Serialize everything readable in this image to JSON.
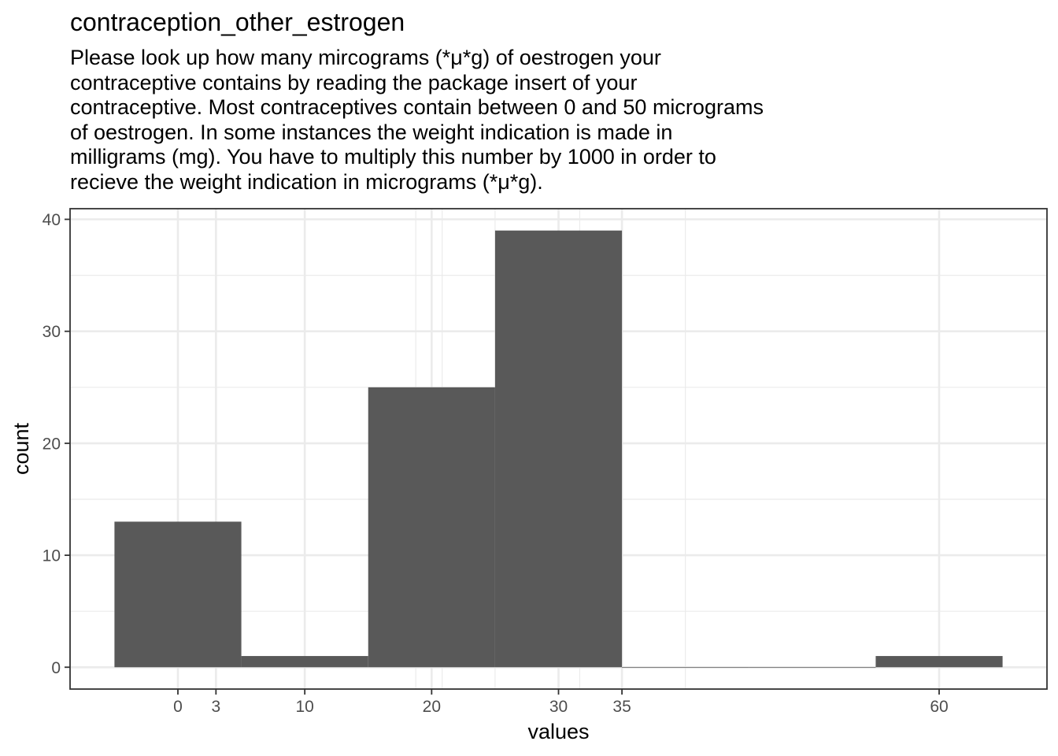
{
  "chart_data": {
    "type": "bar",
    "title": "contraception_other_estrogen",
    "subtitle_lines": [
      "Please look up how many mircograms (*μ*g) of oestrogen your",
      "contraceptive contains by reading the package insert of your",
      "contraceptive. Most contraceptives contain between 0 and 50 micrograms",
      "of oestrogen. In some instances the weight indication is made in",
      "milligrams (mg). You have to multiply this number by 1000 in order to",
      "recieve the weight indication in micrograms (*μ*g)."
    ],
    "xlabel": "values",
    "ylabel": "count",
    "x_ticks": [
      0,
      3,
      10,
      20,
      30,
      35,
      60
    ],
    "y_ticks": [
      0,
      10,
      20,
      30,
      40
    ],
    "xlim": [
      -8.5,
      68.5
    ],
    "ylim": [
      -1.95,
      40.95
    ],
    "x_minor_grid": [
      18.75,
      20.83,
      25,
      31.67,
      40
    ],
    "y_minor_grid": [
      5,
      15,
      25,
      35
    ],
    "bins": [
      {
        "xmin": -5,
        "xmax": 5,
        "count": 13
      },
      {
        "xmin": 5,
        "xmax": 15,
        "count": 1
      },
      {
        "xmin": 15,
        "xmax": 25,
        "count": 25
      },
      {
        "xmin": 25,
        "xmax": 35,
        "count": 39
      },
      {
        "xmin": 35,
        "xmax": 45,
        "count": 0
      },
      {
        "xmin": 45,
        "xmax": 55,
        "count": 0
      },
      {
        "xmin": 55,
        "xmax": 65,
        "count": 1
      }
    ],
    "bar_color": "#595959",
    "grid": true,
    "grid_color": "#ebebeb",
    "legend": "none"
  }
}
